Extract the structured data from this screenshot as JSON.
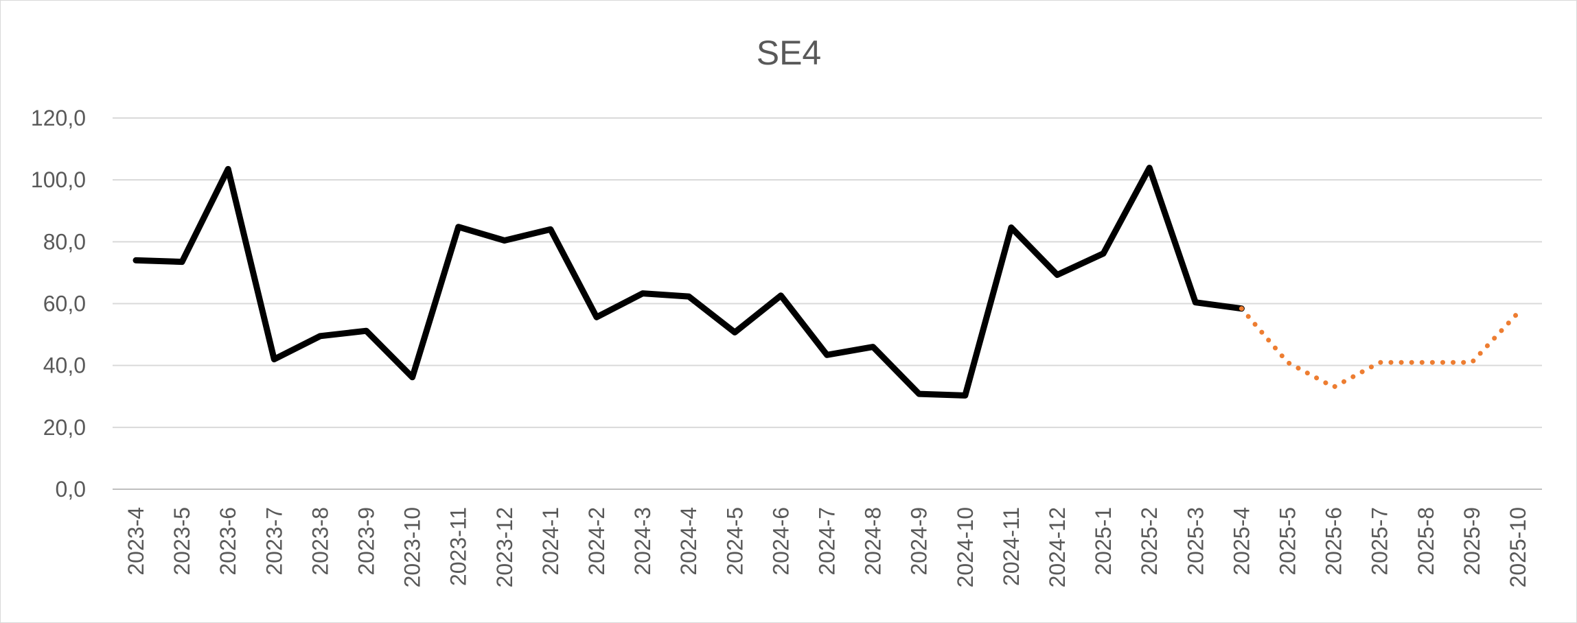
{
  "chart_data": {
    "type": "line",
    "title": "SE4",
    "xlabel": "",
    "ylabel": "",
    "ylim": [
      0,
      120
    ],
    "yticks": [
      "0,0",
      "20,0",
      "40,0",
      "60,0",
      "80,0",
      "100,0",
      "120,0"
    ],
    "ytick_values": [
      0,
      20,
      40,
      60,
      80,
      100,
      120
    ],
    "grid": true,
    "legend": "none",
    "categories": [
      "2023-4",
      "2023-5",
      "2023-6",
      "2023-7",
      "2023-8",
      "2023-9",
      "2023-10",
      "2023-11",
      "2023-12",
      "2024-1",
      "2024-2",
      "2024-3",
      "2024-4",
      "2024-5",
      "2024-6",
      "2024-7",
      "2024-8",
      "2024-9",
      "2024-10",
      "2024-11",
      "2024-12",
      "2025-1",
      "2025-2",
      "2025-3",
      "2025-4",
      "2025-5",
      "2025-6",
      "2025-7",
      "2025-8",
      "2025-9",
      "2025-10"
    ],
    "series": [
      {
        "style": "solid",
        "color": "#000000",
        "values": [
          74.0,
          73.5,
          103.5,
          42.0,
          49.5,
          51.2,
          36.2,
          84.8,
          80.4,
          84.0,
          55.6,
          63.3,
          62.3,
          50.7,
          62.6,
          43.4,
          46.0,
          30.8,
          30.3,
          84.6,
          69.3,
          76.2,
          103.9,
          60.4,
          58.4,
          null,
          null,
          null,
          null,
          null,
          null
        ]
      },
      {
        "style": "dotted",
        "color": "#ED7D31",
        "values": [
          null,
          null,
          null,
          null,
          null,
          null,
          null,
          null,
          null,
          null,
          null,
          null,
          null,
          null,
          null,
          null,
          null,
          null,
          null,
          null,
          null,
          null,
          null,
          null,
          58.4,
          41.0,
          33.0,
          41.0,
          41.0,
          41.0,
          57.0
        ]
      }
    ]
  }
}
